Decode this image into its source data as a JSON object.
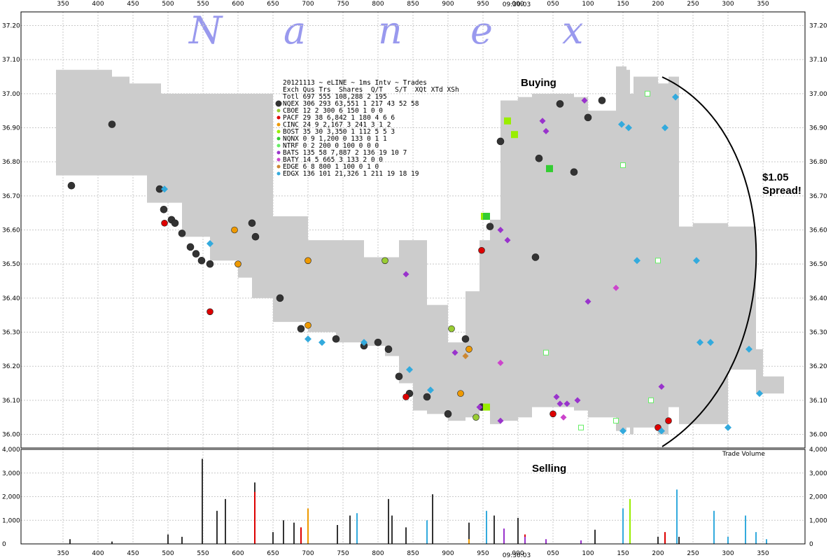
{
  "chart_data": {
    "type": "scatter",
    "brand": [
      "N",
      "a",
      "n",
      "e",
      "x"
    ],
    "time_label": "09:30:03",
    "x_ticks": [
      "350",
      "400",
      "450",
      "500",
      "550",
      "600",
      "650",
      "700",
      "750",
      "800",
      "850",
      "900",
      "950",
      "000",
      "050",
      "100",
      "150",
      "200",
      "250",
      "300",
      "350"
    ],
    "price_axis": {
      "min": 35.96,
      "max": 37.24,
      "ticks": [
        "37.20",
        "37.10",
        "37.00",
        "36.90",
        "36.80",
        "36.70",
        "36.60",
        "36.50",
        "36.40",
        "36.30",
        "36.20",
        "36.10",
        "36.00"
      ]
    },
    "volume_axis": {
      "min": 0,
      "max": 4000,
      "ticks": [
        "4,000",
        "3,000",
        "2,000",
        "1,000",
        "0"
      ]
    },
    "volume_label": "Trade Volume",
    "annotations": {
      "buying": "Buying",
      "selling": "Selling",
      "spread_1": "$1.05",
      "spread_2": "Spread!"
    },
    "stats_table": {
      "title": "20121113 ~ eLINE ~ 1ms Intv ~ Trades",
      "header": "Exch Qus Trs  Shares  Q/T   S/T  XQt XTd XSh",
      "rows": [
        {
          "exchange": "Totl",
          "color": "none",
          "text": "Totl 697 555 108,288    2   195"
        },
        {
          "exchange": "NQEX",
          "color": "#333333",
          "text": "NQEX 306 293  63,551    1   217  43  52  58"
        },
        {
          "exchange": "CBOE",
          "color": "#99cc33",
          "text": "CBOE  12   2     300    6   150   1   0   0"
        },
        {
          "exchange": "PACF",
          "color": "#dd0000",
          "text": "PACF  29  38   6,842    1   180   4   6   6"
        },
        {
          "exchange": "CINC",
          "color": "#ee9900",
          "text": "CINC  24   9   2,167    3   241   3   1   2"
        },
        {
          "exchange": "BOST",
          "color": "#99ee00",
          "text": "BOST  35  30   3,350    1   112   5   5   3"
        },
        {
          "exchange": "NQNX",
          "color": "#33cc33",
          "text": "NQNX   0   9   1,200    0   133   0   1   1"
        },
        {
          "exchange": "NTRF",
          "color": "#66ee66",
          "text": "NTRF   0   2     200    0   100   0   0   0"
        },
        {
          "exchange": "BATS",
          "color": "#9933cc",
          "text": "BATS 135  58   7,887    2   136  19  10   7"
        },
        {
          "exchange": "BATY",
          "color": "#cc44cc",
          "text": "BATY  14   5     665    3   133   2   0   0"
        },
        {
          "exchange": "EDGE",
          "color": "#cc8833",
          "text": "EDGE   6   8     800    1   100   0   1   0"
        },
        {
          "exchange": "EDGX",
          "color": "#33aadd",
          "text": "EDGX 136 101  21,326    1   211  19  18  19"
        }
      ]
    },
    "nbbo_band": {
      "color": "#cccccc",
      "bid": [
        [
          340,
          37.03
        ],
        [
          360,
          36.76
        ],
        [
          390,
          36.76
        ],
        [
          420,
          36.76
        ],
        [
          445,
          36.76
        ],
        [
          470,
          36.76
        ],
        [
          490,
          36.68
        ],
        [
          520,
          36.68
        ],
        [
          540,
          36.58
        ],
        [
          560,
          36.58
        ],
        [
          600,
          36.51
        ],
        [
          620,
          36.46
        ],
        [
          650,
          36.4
        ],
        [
          700,
          36.33
        ],
        [
          740,
          36.3
        ],
        [
          780,
          36.27
        ],
        [
          810,
          36.26
        ],
        [
          830,
          36.23
        ],
        [
          850,
          36.15
        ],
        [
          870,
          36.07
        ],
        [
          900,
          36.06
        ],
        [
          925,
          36.04
        ],
        [
          945,
          36.05
        ],
        [
          960,
          36.07
        ],
        [
          975,
          36.03
        ],
        [
          1000,
          36.04
        ],
        [
          1020,
          36.05
        ],
        [
          1050,
          36.08
        ],
        [
          1080,
          36.08
        ],
        [
          1100,
          36.07
        ],
        [
          1140,
          36.05
        ],
        [
          1155,
          36.01
        ],
        [
          1160,
          36.02
        ],
        [
          1165,
          36.0
        ],
        [
          1200,
          36.02
        ],
        [
          1215,
          36.0
        ],
        [
          1230,
          36.08
        ],
        [
          1250,
          36.03
        ],
        [
          1300,
          36.03
        ],
        [
          1340,
          36.19
        ],
        [
          1350,
          36.12
        ],
        [
          1380,
          36.12
        ]
      ],
      "ask": [
        [
          340,
          37.07
        ],
        [
          360,
          37.07
        ],
        [
          390,
          37.07
        ],
        [
          420,
          37.05
        ],
        [
          445,
          37.03
        ],
        [
          470,
          37.03
        ],
        [
          490,
          37.0
        ],
        [
          520,
          37.0
        ],
        [
          540,
          37.0
        ],
        [
          560,
          37.0
        ],
        [
          600,
          37.0
        ],
        [
          620,
          37.0
        ],
        [
          650,
          36.64
        ],
        [
          700,
          36.57
        ],
        [
          740,
          36.57
        ],
        [
          780,
          36.52
        ],
        [
          810,
          36.52
        ],
        [
          830,
          36.57
        ],
        [
          850,
          36.57
        ],
        [
          870,
          36.38
        ],
        [
          900,
          36.27
        ],
        [
          925,
          36.42
        ],
        [
          945,
          36.57
        ],
        [
          960,
          36.63
        ],
        [
          975,
          36.98
        ],
        [
          1000,
          36.99
        ],
        [
          1020,
          37.0
        ],
        [
          1050,
          37.0
        ],
        [
          1080,
          36.99
        ],
        [
          1100,
          36.95
        ],
        [
          1140,
          37.08
        ],
        [
          1155,
          37.07
        ],
        [
          1160,
          37.0
        ],
        [
          1165,
          37.05
        ],
        [
          1200,
          37.03
        ],
        [
          1215,
          37.05
        ],
        [
          1230,
          36.61
        ],
        [
          1250,
          36.62
        ],
        [
          1300,
          36.61
        ],
        [
          1340,
          36.25
        ],
        [
          1350,
          36.17
        ],
        [
          1380,
          36.17
        ]
      ]
    },
    "trades": [
      {
        "exchange": "NQEX",
        "t": 362,
        "p": 36.73
      },
      {
        "exchange": "NQEX",
        "t": 420,
        "p": 36.91
      },
      {
        "exchange": "NQEX",
        "t": 488,
        "p": 36.72
      },
      {
        "exchange": "NQEX",
        "t": 494,
        "p": 36.66
      },
      {
        "exchange": "NQEX",
        "t": 505,
        "p": 36.63
      },
      {
        "exchange": "NQEX",
        "t": 510,
        "p": 36.62
      },
      {
        "exchange": "NQEX",
        "t": 520,
        "p": 36.59
      },
      {
        "exchange": "NQEX",
        "t": 532,
        "p": 36.55
      },
      {
        "exchange": "NQEX",
        "t": 540,
        "p": 36.53
      },
      {
        "exchange": "NQEX",
        "t": 548,
        "p": 36.51
      },
      {
        "exchange": "NQEX",
        "t": 560,
        "p": 36.5
      },
      {
        "exchange": "NQEX",
        "t": 620,
        "p": 36.62
      },
      {
        "exchange": "NQEX",
        "t": 625,
        "p": 36.58
      },
      {
        "exchange": "NQEX",
        "t": 660,
        "p": 36.4
      },
      {
        "exchange": "NQEX",
        "t": 690,
        "p": 36.31
      },
      {
        "exchange": "NQEX",
        "t": 740,
        "p": 36.28
      },
      {
        "exchange": "NQEX",
        "t": 780,
        "p": 36.26
      },
      {
        "exchange": "NQEX",
        "t": 800,
        "p": 36.27
      },
      {
        "exchange": "NQEX",
        "t": 815,
        "p": 36.25
      },
      {
        "exchange": "NQEX",
        "t": 830,
        "p": 36.17
      },
      {
        "exchange": "NQEX",
        "t": 845,
        "p": 36.12
      },
      {
        "exchange": "NQEX",
        "t": 870,
        "p": 36.11
      },
      {
        "exchange": "NQEX",
        "t": 900,
        "p": 36.06
      },
      {
        "exchange": "NQEX",
        "t": 925,
        "p": 36.28
      },
      {
        "exchange": "NQEX",
        "t": 948,
        "p": 36.08
      },
      {
        "exchange": "NQEX",
        "t": 960,
        "p": 36.61
      },
      {
        "exchange": "NQEX",
        "t": 975,
        "p": 36.86
      },
      {
        "exchange": "NQEX",
        "t": 1025,
        "p": 36.52
      },
      {
        "exchange": "NQEX",
        "t": 1030,
        "p": 36.81
      },
      {
        "exchange": "NQEX",
        "t": 1060,
        "p": 36.97
      },
      {
        "exchange": "NQEX",
        "t": 1080,
        "p": 36.77
      },
      {
        "exchange": "NQEX",
        "t": 1100,
        "p": 36.93
      },
      {
        "exchange": "NQEX",
        "t": 1120,
        "p": 36.98
      },
      {
        "exchange": "PACF",
        "t": 495,
        "p": 36.62
      },
      {
        "exchange": "PACF",
        "t": 560,
        "p": 36.36
      },
      {
        "exchange": "PACF",
        "t": 840,
        "p": 36.11
      },
      {
        "exchange": "PACF",
        "t": 948,
        "p": 36.54
      },
      {
        "exchange": "PACF",
        "t": 1050,
        "p": 36.06
      },
      {
        "exchange": "PACF",
        "t": 1200,
        "p": 36.02
      },
      {
        "exchange": "PACF",
        "t": 1215,
        "p": 36.04
      },
      {
        "exchange": "CINC",
        "t": 595,
        "p": 36.6
      },
      {
        "exchange": "CINC",
        "t": 600,
        "p": 36.5
      },
      {
        "exchange": "CINC",
        "t": 700,
        "p": 36.51
      },
      {
        "exchange": "CINC",
        "t": 700,
        "p": 36.32
      },
      {
        "exchange": "CINC",
        "t": 918,
        "p": 36.12
      },
      {
        "exchange": "CINC",
        "t": 930,
        "p": 36.25
      },
      {
        "exchange": "BOST",
        "t": 952,
        "p": 36.64
      },
      {
        "exchange": "BOST",
        "t": 955,
        "p": 36.08
      },
      {
        "exchange": "BOST",
        "t": 985,
        "p": 36.92
      },
      {
        "exchange": "BOST",
        "t": 995,
        "p": 36.88
      },
      {
        "exchange": "BOST",
        "t": 1045,
        "p": 36.78
      },
      {
        "exchange": "CBOE",
        "t": 810,
        "p": 36.51
      },
      {
        "exchange": "CBOE",
        "t": 905,
        "p": 36.31
      },
      {
        "exchange": "CBOE",
        "t": 940,
        "p": 36.05
      },
      {
        "exchange": "NQNX",
        "t": 955,
        "p": 36.64
      },
      {
        "exchange": "NQNX",
        "t": 1045,
        "p": 36.78
      },
      {
        "exchange": "NTRF",
        "t": 1150,
        "p": 36.79
      },
      {
        "exchange": "NTRF",
        "t": 1185,
        "p": 37.0
      },
      {
        "exchange": "NTRF",
        "t": 1190,
        "p": 36.1
      },
      {
        "exchange": "NTRF",
        "t": 1140,
        "p": 36.04
      },
      {
        "exchange": "NTRF",
        "t": 1090,
        "p": 36.02
      },
      {
        "exchange": "NTRF",
        "t": 1040,
        "p": 36.24
      },
      {
        "exchange": "NTRF",
        "t": 1200,
        "p": 36.51
      },
      {
        "exchange": "BATS",
        "t": 840,
        "p": 36.47
      },
      {
        "exchange": "BATS",
        "t": 945,
        "p": 36.08
      },
      {
        "exchange": "BATS",
        "t": 975,
        "p": 36.6
      },
      {
        "exchange": "BATS",
        "t": 985,
        "p": 36.57
      },
      {
        "exchange": "BATS",
        "t": 1035,
        "p": 36.92
      },
      {
        "exchange": "BATS",
        "t": 1040,
        "p": 36.89
      },
      {
        "exchange": "BATS",
        "t": 1055,
        "p": 36.11
      },
      {
        "exchange": "BATS",
        "t": 1060,
        "p": 36.09
      },
      {
        "exchange": "BATS",
        "t": 1070,
        "p": 36.09
      },
      {
        "exchange": "BATS",
        "t": 1085,
        "p": 36.1
      },
      {
        "exchange": "BATS",
        "t": 1095,
        "p": 36.98
      },
      {
        "exchange": "BATS",
        "t": 1100,
        "p": 36.39
      },
      {
        "exchange": "BATS",
        "t": 1205,
        "p": 36.14
      },
      {
        "exchange": "BATS",
        "t": 910,
        "p": 36.24
      },
      {
        "exchange": "BATS",
        "t": 975,
        "p": 36.04
      },
      {
        "exchange": "BATY",
        "t": 975,
        "p": 36.21
      },
      {
        "exchange": "BATY",
        "t": 1140,
        "p": 36.43
      },
      {
        "exchange": "BATY",
        "t": 1065,
        "p": 36.05
      },
      {
        "exchange": "EDGE",
        "t": 925,
        "p": 36.23
      },
      {
        "exchange": "EDGX",
        "t": 495,
        "p": 36.72
      },
      {
        "exchange": "EDGX",
        "t": 560,
        "p": 36.56
      },
      {
        "exchange": "EDGX",
        "t": 700,
        "p": 36.28
      },
      {
        "exchange": "EDGX",
        "t": 720,
        "p": 36.27
      },
      {
        "exchange": "EDGX",
        "t": 780,
        "p": 36.27
      },
      {
        "exchange": "EDGX",
        "t": 845,
        "p": 36.19
      },
      {
        "exchange": "EDGX",
        "t": 875,
        "p": 36.13
      },
      {
        "exchange": "EDGX",
        "t": 1148,
        "p": 36.91
      },
      {
        "exchange": "EDGX",
        "t": 1158,
        "p": 36.9
      },
      {
        "exchange": "EDGX",
        "t": 1210,
        "p": 36.9
      },
      {
        "exchange": "EDGX",
        "t": 1225,
        "p": 36.99
      },
      {
        "exchange": "EDGX",
        "t": 1260,
        "p": 36.27
      },
      {
        "exchange": "EDGX",
        "t": 1275,
        "p": 36.27
      },
      {
        "exchange": "EDGX",
        "t": 1330,
        "p": 36.25
      },
      {
        "exchange": "EDGX",
        "t": 1205,
        "p": 36.01
      },
      {
        "exchange": "EDGX",
        "t": 1150,
        "p": 36.01
      },
      {
        "exchange": "EDGX",
        "t": 1170,
        "p": 36.51
      },
      {
        "exchange": "EDGX",
        "t": 1255,
        "p": 36.51
      },
      {
        "exchange": "EDGX",
        "t": 1300,
        "p": 36.02
      },
      {
        "exchange": "EDGX",
        "t": 1345,
        "p": 36.12
      }
    ],
    "volume_series": [
      {
        "exchange": "NQEX",
        "t": 360,
        "v": 200
      },
      {
        "exchange": "NQEX",
        "t": 549,
        "v": 3600
      },
      {
        "exchange": "NQEX",
        "t": 570,
        "v": 1400
      },
      {
        "exchange": "NQEX",
        "t": 582,
        "v": 1900
      },
      {
        "exchange": "NQEX",
        "t": 624,
        "v": 2600
      },
      {
        "exchange": "NQEX",
        "t": 665,
        "v": 1000
      },
      {
        "exchange": "NQEX",
        "t": 680,
        "v": 900
      },
      {
        "exchange": "NQEX",
        "t": 700,
        "v": 700
      },
      {
        "exchange": "NQEX",
        "t": 742,
        "v": 800
      },
      {
        "exchange": "NQEX",
        "t": 760,
        "v": 1200
      },
      {
        "exchange": "NQEX",
        "t": 815,
        "v": 1900
      },
      {
        "exchange": "NQEX",
        "t": 820,
        "v": 1200
      },
      {
        "exchange": "NQEX",
        "t": 840,
        "v": 700
      },
      {
        "exchange": "NQEX",
        "t": 878,
        "v": 2100
      },
      {
        "exchange": "NQEX",
        "t": 930,
        "v": 900
      },
      {
        "exchange": "NQEX",
        "t": 966,
        "v": 1200
      },
      {
        "exchange": "NQEX",
        "t": 1000,
        "v": 1100
      },
      {
        "exchange": "NQEX",
        "t": 1110,
        "v": 600
      },
      {
        "exchange": "NQEX",
        "t": 1160,
        "v": 1600
      },
      {
        "exchange": "NQEX",
        "t": 1200,
        "v": 300
      },
      {
        "exchange": "NQEX",
        "t": 1230,
        "v": 300
      },
      {
        "exchange": "NQEX",
        "t": 420,
        "v": 100
      },
      {
        "exchange": "NQEX",
        "t": 500,
        "v": 400
      },
      {
        "exchange": "NQEX",
        "t": 520,
        "v": 300
      },
      {
        "exchange": "NQEX",
        "t": 650,
        "v": 500
      },
      {
        "exchange": "PACF",
        "t": 624,
        "v": 2200
      },
      {
        "exchange": "PACF",
        "t": 690,
        "v": 700
      },
      {
        "exchange": "PACF",
        "t": 1010,
        "v": 400
      },
      {
        "exchange": "PACF",
        "t": 1210,
        "v": 500
      },
      {
        "exchange": "CINC",
        "t": 700,
        "v": 1500
      },
      {
        "exchange": "CINC",
        "t": 930,
        "v": 200
      },
      {
        "exchange": "BOST",
        "t": 1160,
        "v": 1900
      },
      {
        "exchange": "BOST",
        "t": 955,
        "v": 300
      },
      {
        "exchange": "BATS",
        "t": 1010,
        "v": 300
      },
      {
        "exchange": "BATS",
        "t": 1040,
        "v": 200
      },
      {
        "exchange": "BATS",
        "t": 1090,
        "v": 150
      },
      {
        "exchange": "BATS",
        "t": 980,
        "v": 650
      },
      {
        "exchange": "EDGX",
        "t": 770,
        "v": 1300
      },
      {
        "exchange": "EDGX",
        "t": 870,
        "v": 1000
      },
      {
        "exchange": "EDGX",
        "t": 955,
        "v": 1400
      },
      {
        "exchange": "EDGX",
        "t": 1150,
        "v": 1500
      },
      {
        "exchange": "EDGX",
        "t": 1227,
        "v": 2300
      },
      {
        "exchange": "EDGX",
        "t": 1280,
        "v": 1400
      },
      {
        "exchange": "EDGX",
        "t": 1325,
        "v": 1200
      },
      {
        "exchange": "EDGX",
        "t": 1340,
        "v": 500
      },
      {
        "exchange": "EDGX",
        "t": 1300,
        "v": 300
      },
      {
        "exchange": "EDGX",
        "t": 1355,
        "v": 200
      }
    ]
  }
}
